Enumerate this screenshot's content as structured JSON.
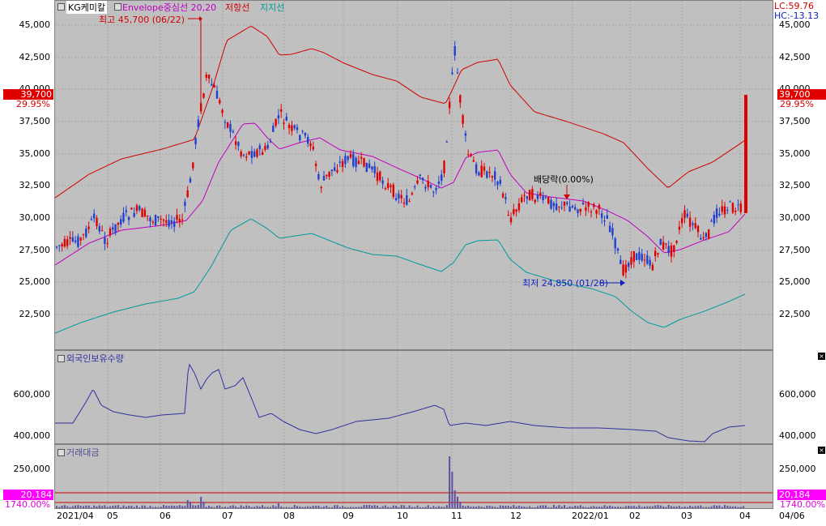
{
  "main_panel": {
    "stock_name": "KG케미칼",
    "indicators": [
      "Envelope중심선 20,20",
      "저항선",
      "지지선"
    ],
    "indicator_colors": [
      "#c000c0",
      "#d00000",
      "#009999"
    ],
    "high_annotation": "최고 45,700 (06/22)",
    "low_annotation": "최저 24,850 (01/28)",
    "dividend_annotation": "배당락(0.00%)",
    "lc": "LC:59.76",
    "hc": "HC:-13.13",
    "current_price": "39,700",
    "change_pct": "29.95%",
    "y_ticks": [
      "45,000",
      "42,500",
      "40,000",
      "37,500",
      "35,000",
      "32,500",
      "30,000",
      "27,500",
      "25,000",
      "22,500"
    ]
  },
  "foreign_panel": {
    "title": "외국인보유수량",
    "y_ticks": [
      "600,000",
      "400,000"
    ]
  },
  "amount_panel": {
    "title": "거래대금",
    "y_ticks": [
      "250,000"
    ],
    "current_value": "20,184",
    "pct": "1740.00%"
  },
  "x_axis": [
    "2021/04",
    "05",
    "06",
    "07",
    "08",
    "09",
    "10",
    "11",
    "12",
    "2022/01",
    "02",
    "03",
    "04",
    "04/06"
  ],
  "colors": {
    "up": "#e00000",
    "down": "#2040d0",
    "price_tag": "#e00000",
    "amount_tag": "#ff00ff"
  }
}
